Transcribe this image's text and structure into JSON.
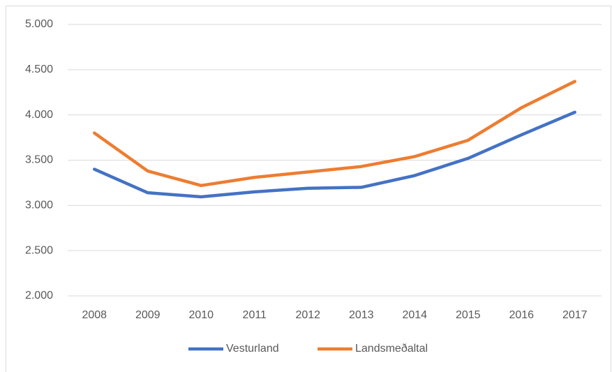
{
  "chart_data": {
    "type": "line",
    "categories": [
      "2008",
      "2009",
      "2010",
      "2011",
      "2012",
      "2013",
      "2014",
      "2015",
      "2016",
      "2017"
    ],
    "series": [
      {
        "name": "Vesturland",
        "color": "#4472c4",
        "values": [
          3400,
          3140,
          3095,
          3150,
          3190,
          3200,
          3330,
          3520,
          3780,
          4030
        ]
      },
      {
        "name": "Landsmeðaltal",
        "color": "#ed7d31",
        "values": [
          3800,
          3380,
          3220,
          3310,
          3370,
          3430,
          3540,
          3720,
          4080,
          4370
        ]
      }
    ],
    "ylim": [
      2000,
      5000
    ],
    "yticks": [
      {
        "value": 2000,
        "label": "2.000"
      },
      {
        "value": 2500,
        "label": "2.500"
      },
      {
        "value": 3000,
        "label": "3.000"
      },
      {
        "value": 3500,
        "label": "3.500"
      },
      {
        "value": 4000,
        "label": "4.000"
      },
      {
        "value": 4500,
        "label": "4.500"
      },
      {
        "value": 5000,
        "label": "5.000"
      }
    ],
    "grid": true,
    "legend": "bottom"
  }
}
